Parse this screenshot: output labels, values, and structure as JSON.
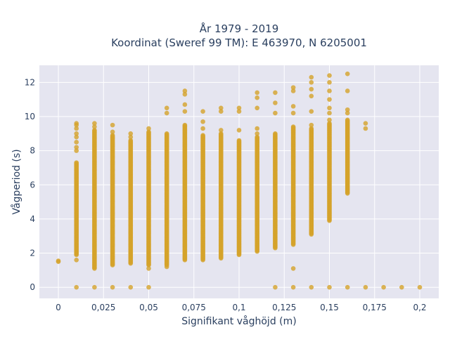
{
  "chart_data": {
    "type": "scatter",
    "title": "År 1979 - 2019",
    "subtitle": "Koordinat (Sweref 99 TM): E 463970, N 6205001",
    "xlabel": "Signifikant våghöjd (m)",
    "ylabel": "Vågperiod (s)",
    "xlim": [
      -0.0105,
      0.2105
    ],
    "ylim": [
      -0.65,
      13.0
    ],
    "x_ticks": [
      "0",
      "0,025",
      "0,05",
      "0,075",
      "0,1",
      "0,125",
      "0,15",
      "0,175",
      "0,2"
    ],
    "x_tick_values": [
      0,
      0.025,
      0.05,
      0.075,
      0.1,
      0.125,
      0.15,
      0.175,
      0.2
    ],
    "y_ticks": [
      "0",
      "2",
      "4",
      "6",
      "8",
      "10",
      "12"
    ],
    "y_tick_values": [
      0,
      2,
      4,
      6,
      8,
      10,
      12
    ],
    "grid": true,
    "legend": "none",
    "marker_color": "#d4a22a",
    "plot_bg": "#e5e5f0",
    "series": [
      {
        "columns": [
          {
            "x": 0.0,
            "range": null,
            "points": [
              1.5,
              1.55
            ]
          },
          {
            "x": 0.01,
            "range": [
              1.9,
              7.3
            ],
            "points": [
              0.0,
              1.6,
              8.0,
              8.2,
              8.5,
              8.8,
              9.0,
              9.3,
              9.5,
              9.6
            ]
          },
          {
            "x": 0.02,
            "range": [
              1.1,
              9.2
            ],
            "points": [
              0.0,
              9.4,
              9.6
            ]
          },
          {
            "x": 0.03,
            "range": [
              1.3,
              8.9
            ],
            "points": [
              0.0,
              9.1,
              9.5
            ]
          },
          {
            "x": 0.04,
            "range": [
              1.4,
              8.6
            ],
            "points": [
              0.0,
              8.8,
              9.0
            ]
          },
          {
            "x": 0.05,
            "range": [
              1.3,
              9.1
            ],
            "points": [
              0.0,
              1.1,
              9.3
            ]
          },
          {
            "x": 0.06,
            "range": [
              1.3,
              9.0
            ],
            "points": [
              1.2,
              10.2,
              10.5
            ]
          },
          {
            "x": 0.07,
            "range": [
              1.6,
              9.5
            ],
            "points": [
              10.3,
              10.7,
              11.3,
              11.5
            ]
          },
          {
            "x": 0.08,
            "range": [
              1.6,
              8.9
            ],
            "points": [
              9.3,
              9.7,
              10.3
            ]
          },
          {
            "x": 0.09,
            "range": [
              1.7,
              9.0
            ],
            "points": [
              9.2,
              10.3,
              10.5
            ]
          },
          {
            "x": 0.1,
            "range": [
              1.9,
              8.6
            ],
            "points": [
              9.2,
              10.3,
              10.5
            ]
          },
          {
            "x": 0.11,
            "range": [
              2.1,
              8.8
            ],
            "points": [
              9.0,
              9.3,
              10.5,
              11.1,
              11.4
            ]
          },
          {
            "x": 0.12,
            "range": [
              2.3,
              9.0
            ],
            "points": [
              0.0,
              10.2,
              10.8,
              11.4
            ]
          },
          {
            "x": 0.13,
            "range": [
              2.5,
              9.4
            ],
            "points": [
              0.0,
              1.1,
              10.2,
              10.6,
              11.5,
              11.7
            ]
          },
          {
            "x": 0.14,
            "range": [
              3.1,
              9.3
            ],
            "points": [
              0.0,
              9.5,
              10.3,
              11.2,
              11.6,
              12.0,
              12.3
            ]
          },
          {
            "x": 0.15,
            "range": [
              3.9,
              9.6
            ],
            "points": [
              0.0,
              9.8,
              10.2,
              10.5,
              11.0,
              11.5,
              12.0,
              12.4
            ]
          },
          {
            "x": 0.16,
            "range": [
              5.5,
              9.8
            ],
            "points": [
              0.0,
              10.2,
              10.4,
              11.5,
              12.5
            ]
          },
          {
            "x": 0.17,
            "range": null,
            "points": [
              0.0,
              9.3,
              9.6
            ]
          },
          {
            "x": 0.18,
            "range": null,
            "points": [
              0.0
            ]
          },
          {
            "x": 0.19,
            "range": null,
            "points": [
              0.0
            ]
          },
          {
            "x": 0.2,
            "range": null,
            "points": [
              0.0
            ]
          }
        ]
      }
    ]
  }
}
